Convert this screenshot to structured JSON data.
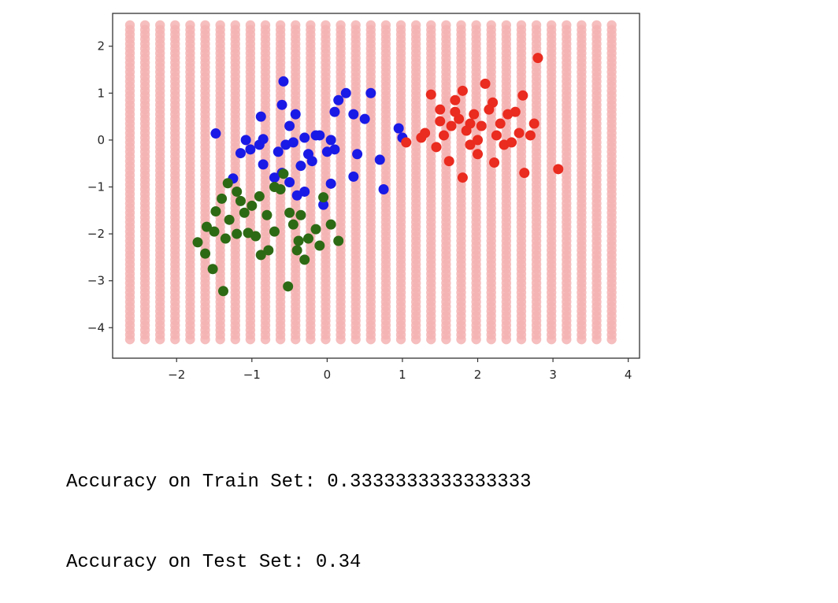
{
  "chart_data": {
    "type": "scatter",
    "title": "",
    "xlabel": "",
    "ylabel": "",
    "xlim": [
      -2.85,
      4.15
    ],
    "ylim": [
      -4.65,
      2.7
    ],
    "xticks": [
      -2,
      -1,
      0,
      1,
      2,
      3,
      4
    ],
    "yticks": [
      2,
      1,
      0,
      -1,
      -2,
      -3,
      -4
    ],
    "xtick_labels": [
      "−2",
      "−1",
      "0",
      "1",
      "2",
      "3",
      "4"
    ],
    "ytick_labels": [
      "2",
      "1",
      "0",
      "−1",
      "−2",
      "−3",
      "−4"
    ],
    "grid": false,
    "legend": "none",
    "background_grid": {
      "description": "decision-region grid of predicted points",
      "color": "#f4b3b3",
      "x_start": -2.62,
      "x_end": 3.78,
      "x_step": 0.2,
      "y_start": -4.25,
      "y_end": 2.45,
      "y_step": 0.1
    },
    "series": [
      {
        "color": "#1a1ae6",
        "points": [
          [
            -1.48,
            0.14
          ],
          [
            -1.08,
            0.0
          ],
          [
            -0.85,
            0.02
          ],
          [
            -0.88,
            0.5
          ],
          [
            -0.58,
            1.25
          ],
          [
            -0.6,
            0.75
          ],
          [
            -0.42,
            0.55
          ],
          [
            -0.5,
            0.3
          ],
          [
            -0.3,
            0.05
          ],
          [
            -0.25,
            -0.3
          ],
          [
            -0.1,
            0.1
          ],
          [
            0.05,
            0.0
          ],
          [
            0.1,
            0.6
          ],
          [
            0.15,
            0.85
          ],
          [
            0.25,
            1.0
          ],
          [
            0.35,
            0.55
          ],
          [
            0.5,
            0.45
          ],
          [
            0.58,
            1.0
          ],
          [
            0.95,
            0.25
          ],
          [
            1.0,
            0.05
          ],
          [
            0.7,
            -0.42
          ],
          [
            0.4,
            -0.3
          ],
          [
            0.35,
            -0.78
          ],
          [
            0.75,
            -1.05
          ],
          [
            0.05,
            -0.93
          ],
          [
            -0.05,
            -1.38
          ],
          [
            -0.3,
            -1.1
          ],
          [
            -0.4,
            -1.18
          ],
          [
            -0.5,
            -0.9
          ],
          [
            -0.9,
            -0.1
          ],
          [
            -0.85,
            -0.52
          ],
          [
            -1.15,
            -0.28
          ],
          [
            -1.02,
            -0.2
          ],
          [
            -1.25,
            -0.82
          ],
          [
            -0.55,
            -0.1
          ],
          [
            -0.65,
            -0.25
          ],
          [
            -0.45,
            -0.05
          ],
          [
            -0.35,
            -0.55
          ],
          [
            -0.2,
            -0.45
          ],
          [
            -0.15,
            0.1
          ],
          [
            0.0,
            -0.25
          ],
          [
            0.1,
            -0.2
          ],
          [
            -0.6,
            -0.7
          ],
          [
            -0.7,
            -0.8
          ]
        ]
      },
      {
        "color": "#ea2b1f",
        "points": [
          [
            1.05,
            -0.05
          ],
          [
            1.25,
            0.05
          ],
          [
            1.38,
            0.97
          ],
          [
            1.5,
            0.65
          ],
          [
            1.55,
            0.1
          ],
          [
            1.7,
            0.85
          ],
          [
            1.8,
            1.05
          ],
          [
            1.75,
            0.45
          ],
          [
            1.85,
            0.2
          ],
          [
            1.9,
            -0.1
          ],
          [
            1.95,
            0.55
          ],
          [
            2.05,
            0.3
          ],
          [
            2.1,
            1.2
          ],
          [
            2.2,
            0.8
          ],
          [
            2.3,
            0.35
          ],
          [
            2.35,
            -0.1
          ],
          [
            2.5,
            0.6
          ],
          [
            2.55,
            0.15
          ],
          [
            2.6,
            0.95
          ],
          [
            2.7,
            0.1
          ],
          [
            2.75,
            0.35
          ],
          [
            2.8,
            1.75
          ],
          [
            2.62,
            -0.7
          ],
          [
            3.07,
            -0.62
          ],
          [
            2.22,
            -0.48
          ],
          [
            1.8,
            -0.8
          ],
          [
            1.62,
            -0.45
          ],
          [
            1.45,
            -0.15
          ],
          [
            1.65,
            0.3
          ],
          [
            2.0,
            0.0
          ],
          [
            2.15,
            0.65
          ],
          [
            1.9,
            0.35
          ],
          [
            2.4,
            0.55
          ],
          [
            2.0,
            -0.3
          ],
          [
            1.7,
            0.6
          ],
          [
            2.25,
            0.1
          ],
          [
            1.3,
            0.15
          ],
          [
            1.5,
            0.4
          ],
          [
            2.45,
            -0.05
          ]
        ]
      },
      {
        "color": "#2d6a14",
        "points": [
          [
            -1.72,
            -2.18
          ],
          [
            -1.62,
            -2.42
          ],
          [
            -1.52,
            -2.75
          ],
          [
            -1.38,
            -3.22
          ],
          [
            -1.6,
            -1.85
          ],
          [
            -1.48,
            -1.52
          ],
          [
            -1.4,
            -1.25
          ],
          [
            -1.32,
            -0.92
          ],
          [
            -1.2,
            -1.1
          ],
          [
            -1.1,
            -1.55
          ],
          [
            -1.05,
            -1.98
          ],
          [
            -0.95,
            -2.05
          ],
          [
            -0.88,
            -2.45
          ],
          [
            -0.78,
            -2.35
          ],
          [
            -0.7,
            -1.95
          ],
          [
            -0.62,
            -1.05
          ],
          [
            -0.58,
            -0.72
          ],
          [
            -0.5,
            -1.55
          ],
          [
            -0.45,
            -1.8
          ],
          [
            -0.38,
            -2.15
          ],
          [
            -0.3,
            -2.55
          ],
          [
            -0.25,
            -2.1
          ],
          [
            -0.15,
            -1.9
          ],
          [
            -0.05,
            -1.22
          ],
          [
            0.05,
            -1.8
          ],
          [
            0.15,
            -2.15
          ],
          [
            -0.52,
            -3.12
          ],
          [
            -0.35,
            -1.6
          ],
          [
            -1.3,
            -1.7
          ],
          [
            -1.2,
            -2.0
          ],
          [
            -1.0,
            -1.4
          ],
          [
            -0.8,
            -1.6
          ],
          [
            -0.7,
            -1.0
          ],
          [
            -1.35,
            -2.1
          ],
          [
            -1.15,
            -1.3
          ],
          [
            -0.4,
            -2.35
          ],
          [
            -0.1,
            -2.25
          ],
          [
            -0.9,
            -1.2
          ],
          [
            -1.5,
            -1.95
          ]
        ]
      }
    ]
  },
  "output": {
    "train_accuracy_line": "Accuracy on Train Set: 0.3333333333333333",
    "test_accuracy_line": "Accuracy on Test Set: 0.34"
  }
}
